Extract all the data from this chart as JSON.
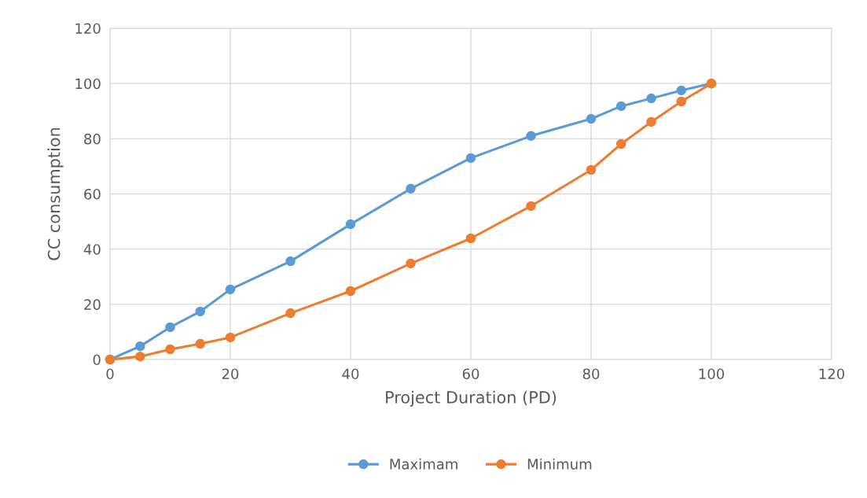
{
  "chart_data": {
    "type": "line",
    "xlabel": "Project Duration (PD)",
    "ylabel": "CC consumption",
    "x": [
      0,
      5,
      10,
      15,
      20,
      30,
      40,
      50,
      60,
      70,
      80,
      85,
      90,
      95,
      100
    ],
    "series": [
      {
        "name": "Maximam",
        "color": "#5b9bd5",
        "values": [
          0,
          4.8,
          11.7,
          17.4,
          25.4,
          35.6,
          49.0,
          61.9,
          73.0,
          81.0,
          87.2,
          91.8,
          94.6,
          97.5,
          100
        ]
      },
      {
        "name": "Minimum",
        "color": "#ed7d31",
        "values": [
          0,
          1.1,
          3.7,
          5.7,
          8.0,
          16.8,
          24.8,
          34.8,
          43.9,
          55.6,
          68.7,
          78.1,
          86.1,
          93.5,
          100
        ]
      }
    ],
    "xlim": [
      0,
      120
    ],
    "xticks": [
      0,
      20,
      40,
      60,
      80,
      100,
      120
    ],
    "ylim": [
      0,
      120
    ],
    "yticks": [
      0,
      20,
      40,
      60,
      80,
      100,
      120
    ],
    "grid": true,
    "legend": "bottom",
    "marker": "circle",
    "line_style": "solid"
  }
}
